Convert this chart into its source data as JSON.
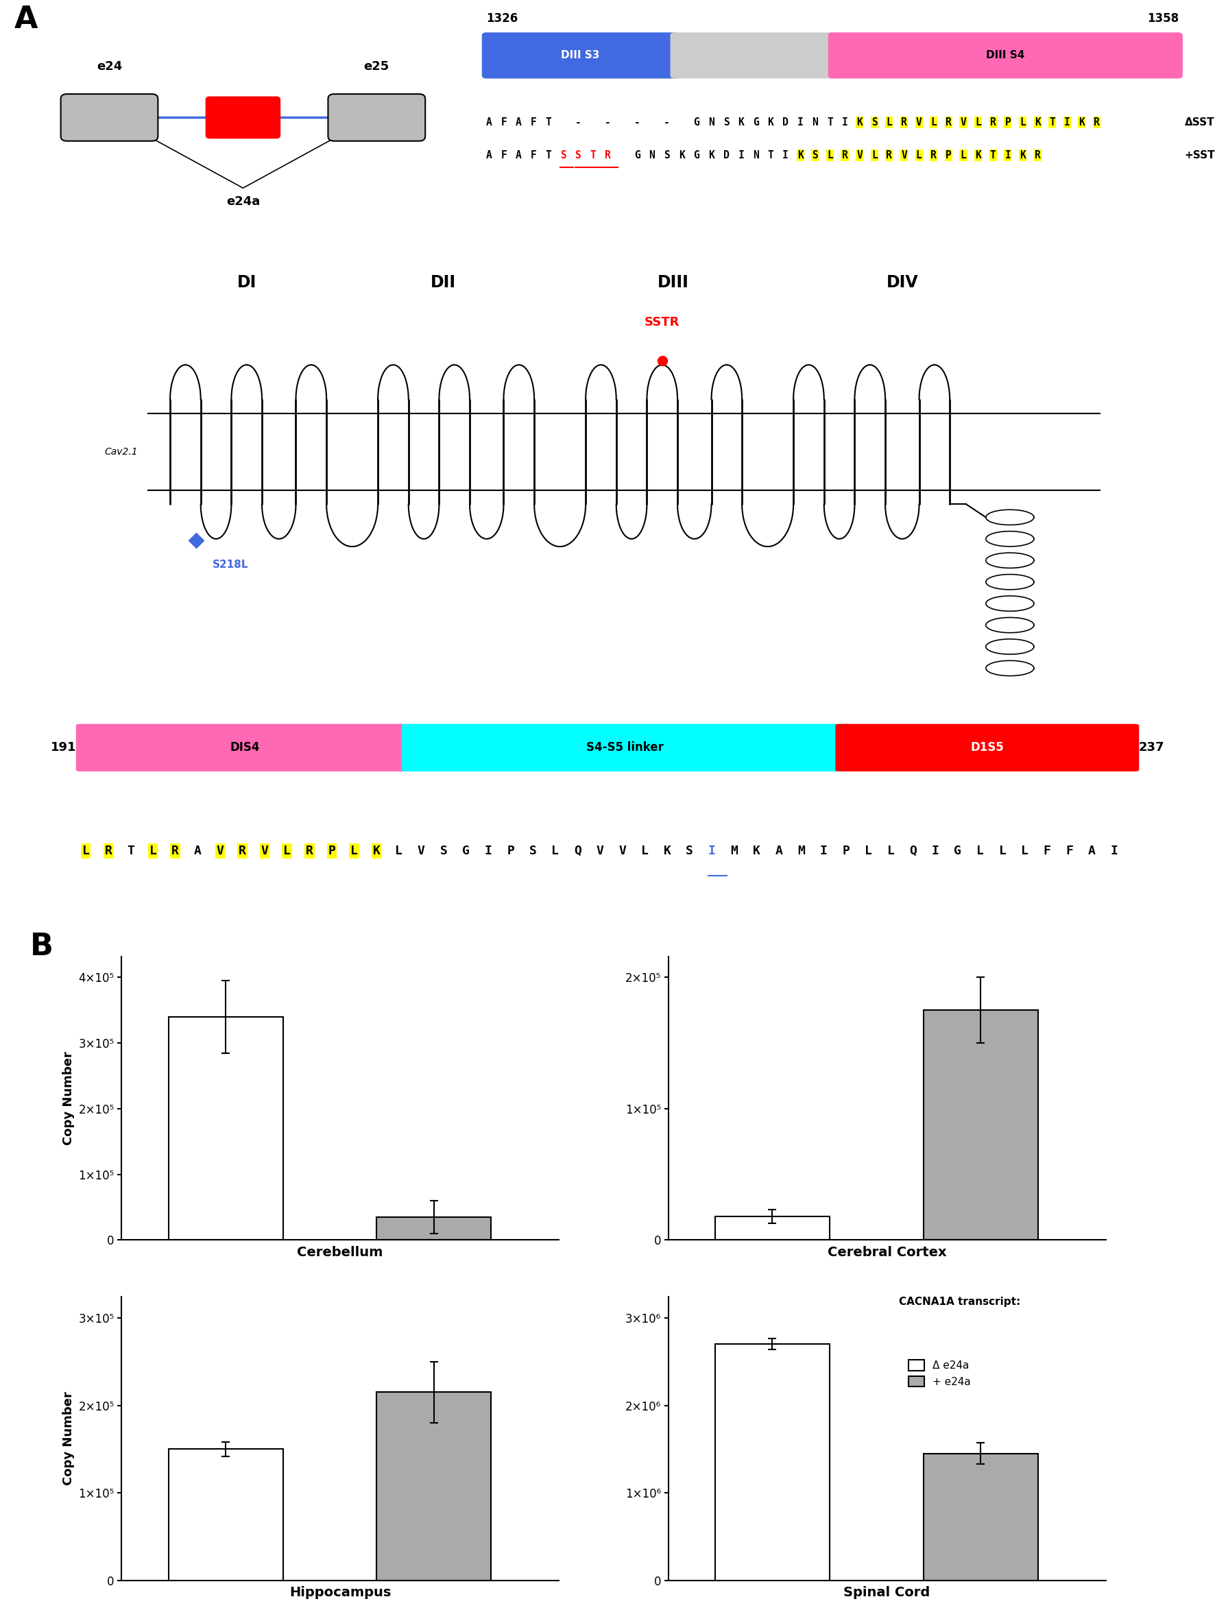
{
  "panel_A_label": "A",
  "panel_B_label": "B",
  "linker_diagram": {
    "pos_start": "191",
    "pos_end": "237",
    "dis4_label": "DIS4",
    "dis4_color": "#FF69B4",
    "linker_label": "S4-S5 linker",
    "linker_color": "#00FFFF",
    "d1s5_label": "D1S5",
    "d1s5_color": "#FF0000",
    "sequence": "LRTLRAVRVLRPLKLVSGIPSLQVVLKSIMKAMIPLLQIGLLLFFAI",
    "yellow_indices": [
      0,
      1,
      3,
      4,
      6,
      7,
      8,
      9,
      10,
      11,
      12,
      13
    ],
    "blue_index": 28
  },
  "bar_charts": {
    "cerebellum": {
      "title": "Cerebellum",
      "delta_val": 340000,
      "delta_err": 55000,
      "plus_val": 35000,
      "plus_err": 25000,
      "ymax": 400000.0,
      "yticks": [
        0,
        100000.0,
        200000.0,
        300000.0,
        400000.0
      ],
      "ytick_labels": [
        "0",
        "1×10⁵",
        "2×10⁵",
        "3×10⁵",
        "4×10⁵"
      ]
    },
    "cerebral_cortex": {
      "title": "Cerebral Cortex",
      "delta_val": 18000,
      "delta_err": 5000,
      "plus_val": 175000,
      "plus_err": 25000,
      "ymax": 200000.0,
      "yticks": [
        0,
        100000.0,
        200000.0
      ],
      "ytick_labels": [
        "0",
        "1×10⁵",
        "2×10⁵"
      ]
    },
    "hippocampus": {
      "title": "Hippocampus",
      "delta_val": 150000,
      "delta_err": 8000,
      "plus_val": 215000,
      "plus_err": 35000,
      "ymax": 300000.0,
      "yticks": [
        0,
        100000.0,
        200000.0,
        300000.0
      ],
      "ytick_labels": [
        "0",
        "1×10⁵",
        "2×10⁵",
        "3×10⁵"
      ]
    },
    "spinal_cord": {
      "title": "Spinal Cord",
      "delta_val": 2700000,
      "delta_err": 60000,
      "plus_val": 1450000,
      "plus_err": 120000,
      "ymax": 3000000.0,
      "yticks": [
        0,
        1000000.0,
        2000000.0,
        3000000.0
      ],
      "ytick_labels": [
        "0",
        "1×10⁶",
        "2×10⁶",
        "3×10⁶"
      ]
    }
  },
  "bar_colors": {
    "delta": "#FFFFFF",
    "plus": "#AAAAAA"
  },
  "legend": {
    "title": "CACNA1A transcript:",
    "delta_label": "Δ e24a",
    "plus_label": "+ e24a"
  },
  "ylabel": "Copy Number"
}
